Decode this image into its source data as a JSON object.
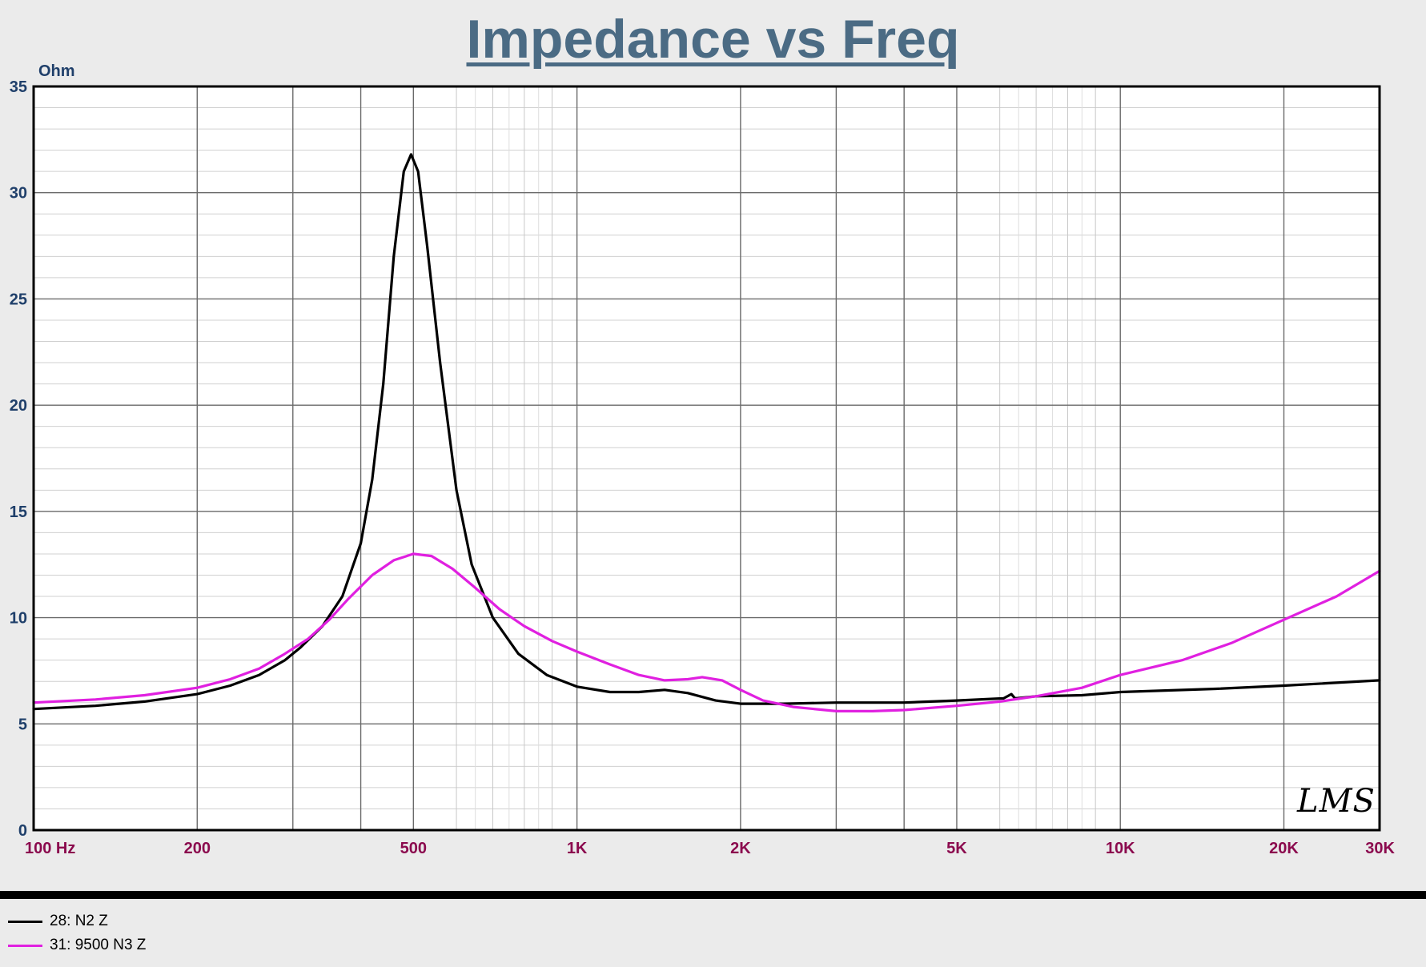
{
  "chart_data": {
    "type": "line",
    "title": "Impedance vs Freq",
    "ylabel": "Ohm",
    "xlabel": "",
    "x_scale": "log",
    "xlim": [
      100,
      30000
    ],
    "ylim": [
      0,
      35
    ],
    "grid": true,
    "y_ticks": [
      0,
      5,
      10,
      15,
      20,
      25,
      30,
      35
    ],
    "x_tick_labels": [
      {
        "value": 100,
        "label": "100  Hz"
      },
      {
        "value": 200,
        "label": "200"
      },
      {
        "value": 500,
        "label": "500"
      },
      {
        "value": 1000,
        "label": "1K"
      },
      {
        "value": 2000,
        "label": "2K"
      },
      {
        "value": 5000,
        "label": "5K"
      },
      {
        "value": 10000,
        "label": "10K"
      },
      {
        "value": 20000,
        "label": "20K"
      },
      {
        "value": 30000,
        "label": "30K"
      }
    ],
    "series": [
      {
        "name": "28: N2 Z",
        "color": "#000000",
        "points": [
          [
            100,
            5.7
          ],
          [
            130,
            5.85
          ],
          [
            160,
            6.05
          ],
          [
            200,
            6.4
          ],
          [
            230,
            6.8
          ],
          [
            260,
            7.3
          ],
          [
            290,
            8.0
          ],
          [
            310,
            8.6
          ],
          [
            340,
            9.6
          ],
          [
            370,
            11.0
          ],
          [
            400,
            13.5
          ],
          [
            420,
            16.5
          ],
          [
            440,
            21.0
          ],
          [
            460,
            27.0
          ],
          [
            480,
            31.0
          ],
          [
            495,
            31.8
          ],
          [
            510,
            31.0
          ],
          [
            530,
            27.5
          ],
          [
            560,
            22.0
          ],
          [
            600,
            16.0
          ],
          [
            640,
            12.5
          ],
          [
            700,
            10.0
          ],
          [
            780,
            8.3
          ],
          [
            880,
            7.3
          ],
          [
            1000,
            6.75
          ],
          [
            1150,
            6.5
          ],
          [
            1300,
            6.5
          ],
          [
            1450,
            6.6
          ],
          [
            1600,
            6.45
          ],
          [
            1800,
            6.1
          ],
          [
            2000,
            5.95
          ],
          [
            2400,
            5.95
          ],
          [
            3000,
            6.0
          ],
          [
            4000,
            6.0
          ],
          [
            5000,
            6.1
          ],
          [
            6100,
            6.2
          ],
          [
            6300,
            6.4
          ],
          [
            6400,
            6.2
          ],
          [
            7000,
            6.3
          ],
          [
            8500,
            6.35
          ],
          [
            10000,
            6.5
          ],
          [
            15000,
            6.65
          ],
          [
            20000,
            6.8
          ],
          [
            30000,
            7.05
          ]
        ]
      },
      {
        "name": "31: 9500 N3 Z",
        "color": "#e020e0",
        "points": [
          [
            100,
            6.0
          ],
          [
            130,
            6.15
          ],
          [
            160,
            6.35
          ],
          [
            200,
            6.7
          ],
          [
            230,
            7.1
          ],
          [
            260,
            7.6
          ],
          [
            290,
            8.3
          ],
          [
            320,
            9.0
          ],
          [
            350,
            9.9
          ],
          [
            380,
            10.9
          ],
          [
            420,
            12.0
          ],
          [
            460,
            12.7
          ],
          [
            500,
            13.0
          ],
          [
            540,
            12.9
          ],
          [
            590,
            12.3
          ],
          [
            650,
            11.4
          ],
          [
            720,
            10.4
          ],
          [
            800,
            9.6
          ],
          [
            900,
            8.9
          ],
          [
            1000,
            8.4
          ],
          [
            1150,
            7.8
          ],
          [
            1300,
            7.3
          ],
          [
            1450,
            7.05
          ],
          [
            1600,
            7.1
          ],
          [
            1700,
            7.2
          ],
          [
            1850,
            7.05
          ],
          [
            2000,
            6.6
          ],
          [
            2200,
            6.1
          ],
          [
            2500,
            5.8
          ],
          [
            3000,
            5.6
          ],
          [
            3500,
            5.6
          ],
          [
            4000,
            5.65
          ],
          [
            5000,
            5.85
          ],
          [
            6000,
            6.05
          ],
          [
            7000,
            6.3
          ],
          [
            8500,
            6.7
          ],
          [
            10000,
            7.3
          ],
          [
            13000,
            8.0
          ],
          [
            16000,
            8.8
          ],
          [
            20000,
            9.9
          ],
          [
            25000,
            11.0
          ],
          [
            30000,
            12.2
          ]
        ]
      }
    ]
  },
  "legend": [
    {
      "label": "28: N2 Z",
      "color": "#000000"
    },
    {
      "label": "31: 9500 N3 Z",
      "color": "#e020e0"
    }
  ],
  "logo": "LMS",
  "colors": {
    "title": "#4b6b84",
    "axis_labels": "#8b0a4e",
    "y_tick_labels": "#1f3f6a",
    "background": "#ebebeb",
    "plot_background": "#ffffff"
  }
}
